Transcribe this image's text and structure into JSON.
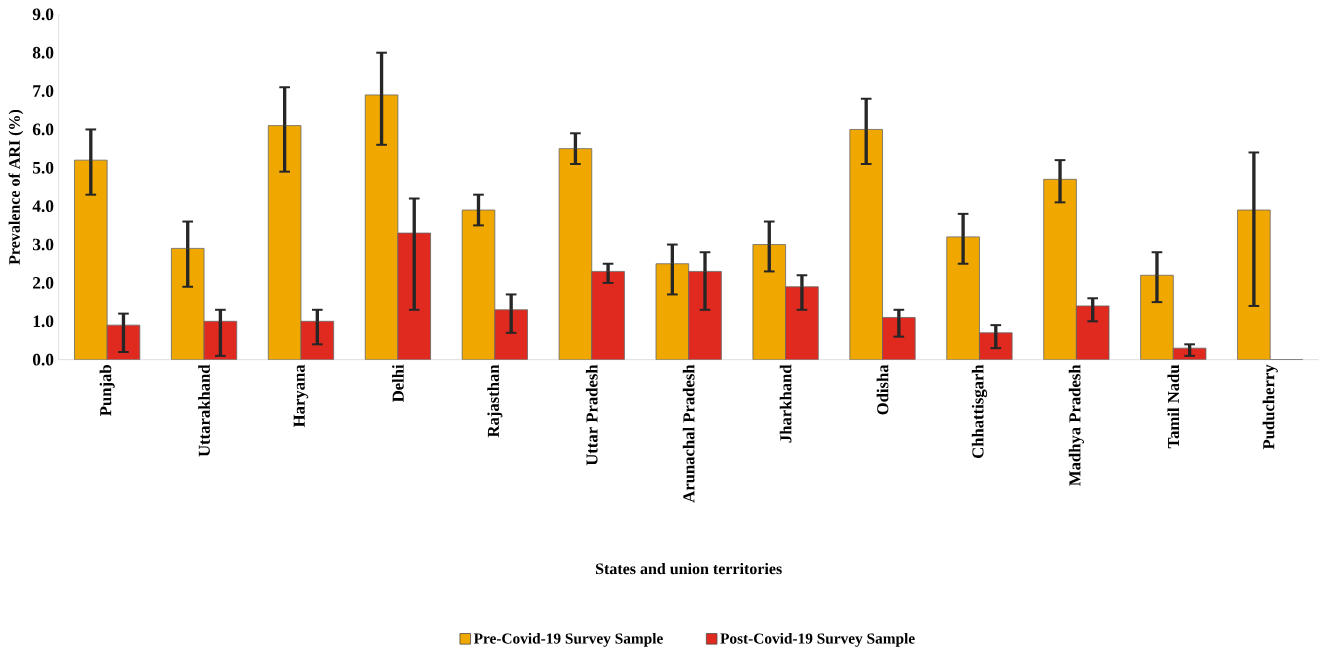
{
  "chart_data": {
    "type": "bar",
    "xlabel": "States and union territories",
    "ylabel": "Prevalence of ARI (%)",
    "categories": [
      "Punjab",
      "Uttarakhand",
      "Haryana",
      "Delhi",
      "Rajasthan",
      "Uttar Pradesh",
      "Arunachal Pradesh",
      "Jharkhand",
      "Odisha",
      "Chhattisgarh",
      "Madhya Pradesh",
      "Tamil Nadu",
      "Puducherry"
    ],
    "series": [
      {
        "name": "Pre-Covid-19 Survey Sample",
        "color": "#f0a800",
        "values": [
          5.2,
          2.9,
          6.1,
          6.9,
          3.9,
          5.5,
          2.5,
          3.0,
          6.0,
          3.2,
          4.7,
          2.2,
          3.9
        ],
        "errors": [
          [
            4.3,
            6.0
          ],
          [
            1.9,
            3.6
          ],
          [
            4.9,
            7.1
          ],
          [
            5.6,
            8.0
          ],
          [
            3.5,
            4.3
          ],
          [
            5.1,
            5.9
          ],
          [
            1.7,
            3.0
          ],
          [
            2.3,
            3.6
          ],
          [
            5.1,
            6.8
          ],
          [
            2.5,
            3.8
          ],
          [
            4.1,
            5.2
          ],
          [
            1.5,
            2.8
          ],
          [
            1.4,
            5.4
          ]
        ]
      },
      {
        "name": "Post-Covid-19 Survey Sample",
        "color": "#e02a20",
        "values": [
          0.9,
          1.0,
          1.0,
          3.3,
          1.3,
          2.3,
          2.3,
          1.9,
          1.1,
          0.7,
          1.4,
          0.3,
          0
        ],
        "errors": [
          [
            0.2,
            1.2
          ],
          [
            0.1,
            1.3
          ],
          [
            0.4,
            1.3
          ],
          [
            1.3,
            4.2
          ],
          [
            0.7,
            1.7
          ],
          [
            2.0,
            2.5
          ],
          [
            1.3,
            2.8
          ],
          [
            1.3,
            2.2
          ],
          [
            0.6,
            1.3
          ],
          [
            0.3,
            0.9
          ],
          [
            1.0,
            1.6
          ],
          [
            0.1,
            0.4
          ],
          null
        ]
      }
    ],
    "ylim": [
      0,
      9
    ],
    "yticks": [
      {
        "value": 0,
        "label": "0.0"
      },
      {
        "value": 1,
        "label": "1.0"
      },
      {
        "value": 2,
        "label": "2.0"
      },
      {
        "value": 3,
        "label": "3.0"
      },
      {
        "value": 4,
        "label": "4.0"
      },
      {
        "value": 5,
        "label": "5.0"
      },
      {
        "value": 6,
        "label": "6.0"
      },
      {
        "value": 7,
        "label": "7.0"
      },
      {
        "value": 8,
        "label": "8.0"
      },
      {
        "value": 9,
        "label": "9.0"
      }
    ],
    "grid": false,
    "legend": "bottom"
  }
}
